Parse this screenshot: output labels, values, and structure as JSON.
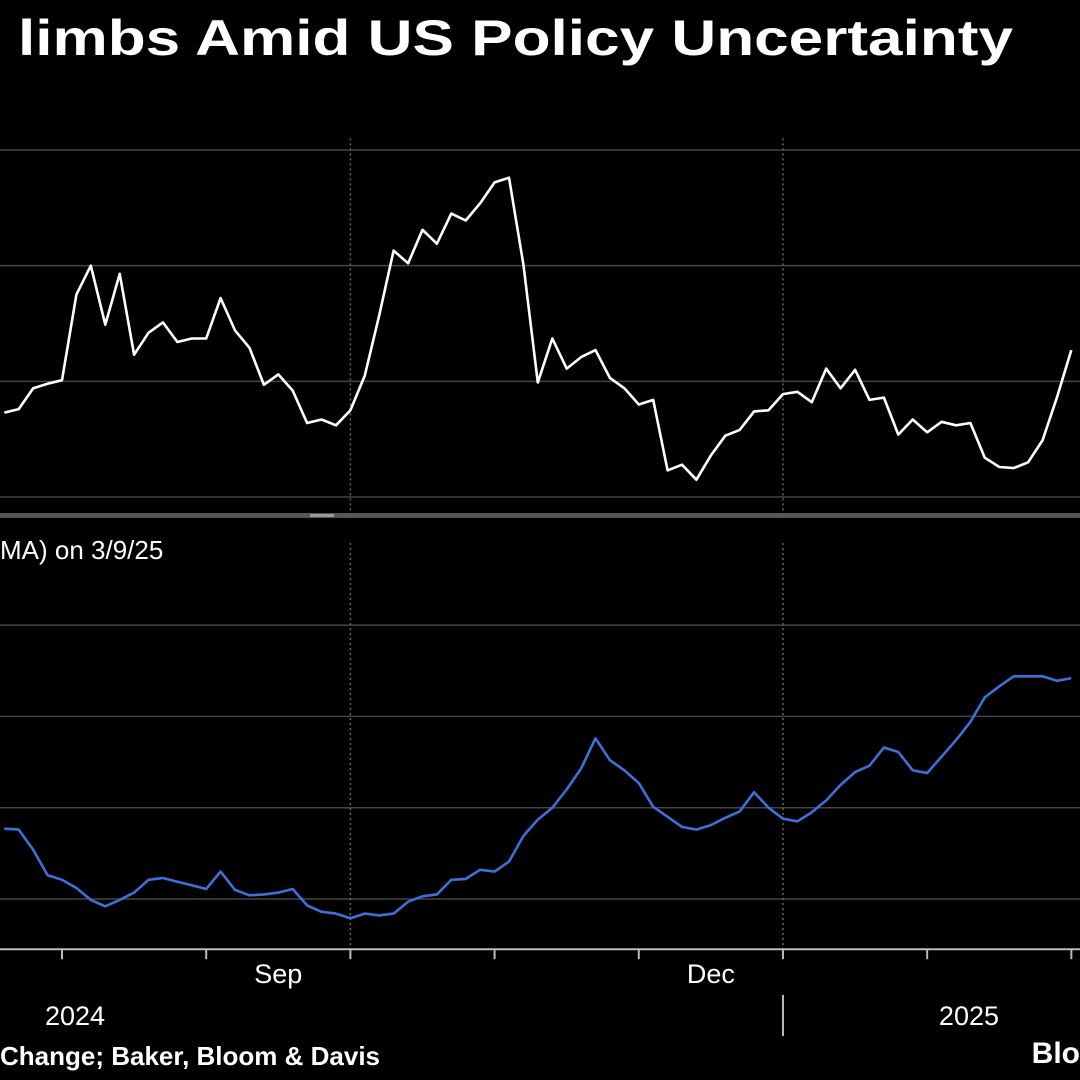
{
  "chart_data": [
    {
      "type": "line",
      "title": "limbs Amid US Policy Uncertainty",
      "x": [
        -0.4,
        -0.3,
        -0.2,
        -0.1,
        0,
        0.1,
        0.2,
        0.3,
        0.4,
        0.5,
        0.6,
        0.7,
        0.8,
        0.9,
        1,
        1.1,
        1.2,
        1.3,
        1.4,
        1.5,
        1.6,
        1.7,
        1.8,
        1.9,
        2,
        2.1,
        2.2,
        2.3,
        2.4,
        2.5,
        2.6,
        2.7,
        2.8,
        2.9,
        3,
        3.1,
        3.2,
        3.3,
        3.4,
        3.5,
        3.6,
        3.7,
        3.8,
        3.9,
        4,
        4.1,
        4.2,
        4.3,
        4.4,
        4.5,
        4.6,
        4.7,
        4.8,
        4.9,
        5,
        5.1,
        5.2,
        5.3,
        5.4,
        5.5,
        5.6,
        5.7,
        5.8,
        5.9,
        6,
        6.1,
        6.2,
        6.3,
        6.4,
        6.5,
        6.6,
        6.7,
        6.8,
        6.9,
        7
      ],
      "series": [
        {
          "color": "#ffffff",
          "values": [
            0.73,
            0.76,
            0.94,
            0.98,
            1.01,
            1.75,
            2.0,
            1.49,
            1.93,
            1.23,
            1.42,
            1.51,
            1.34,
            1.37,
            1.37,
            1.72,
            1.44,
            1.29,
            0.97,
            1.06,
            0.92,
            0.64,
            0.67,
            0.62,
            0.75,
            1.05,
            1.57,
            2.13,
            2.02,
            2.31,
            2.19,
            2.45,
            2.39,
            2.54,
            2.72,
            2.76,
            2.01,
            0.99,
            1.37,
            1.11,
            1.21,
            1.27,
            1.03,
            0.94,
            0.8,
            0.84,
            0.23,
            0.28,
            0.15,
            0.36,
            0.53,
            0.58,
            0.74,
            0.75,
            0.89,
            0.91,
            0.82,
            1.11,
            0.94,
            1.1,
            0.84,
            0.86,
            0.54,
            0.67,
            0.56,
            0.65,
            0.62,
            0.64,
            0.34,
            0.26,
            0.25,
            0.3,
            0.49,
            0.86,
            1.27
          ]
        }
      ],
      "xlim": [
        -0.43,
        7.06
      ],
      "ylim": [
        -0.15,
        3.1
      ],
      "yticks": [
        0,
        1,
        2,
        3
      ],
      "xgrid": [
        2,
        5
      ],
      "grid": true
    },
    {
      "type": "line",
      "subtitle": "MA) on 3/9/25",
      "x": [
        -0.4,
        -0.3,
        -0.2,
        -0.1,
        0,
        0.1,
        0.2,
        0.3,
        0.4,
        0.5,
        0.6,
        0.7,
        0.8,
        0.9,
        1,
        1.1,
        1.2,
        1.3,
        1.4,
        1.5,
        1.6,
        1.7,
        1.8,
        1.9,
        2,
        2.1,
        2.2,
        2.3,
        2.4,
        2.5,
        2.6,
        2.7,
        2.8,
        2.9,
        3,
        3.1,
        3.2,
        3.3,
        3.4,
        3.5,
        3.6,
        3.7,
        3.8,
        3.9,
        4,
        4.1,
        4.2,
        4.3,
        4.4,
        4.5,
        4.6,
        4.7,
        4.8,
        4.9,
        5,
        5.1,
        5.2,
        5.3,
        5.4,
        5.5,
        5.6,
        5.7,
        5.8,
        5.9,
        6,
        6.1,
        6.2,
        6.3,
        6.4,
        6.5,
        6.6,
        6.7,
        6.8,
        6.9,
        7
      ],
      "series": [
        {
          "color": "#3f6fd8",
          "values": [
            0.77,
            0.76,
            0.54,
            0.26,
            0.21,
            0.12,
            -0.01,
            -0.08,
            -0.01,
            0.07,
            0.21,
            0.23,
            0.19,
            0.15,
            0.11,
            0.3,
            0.1,
            0.04,
            0.05,
            0.07,
            0.11,
            -0.07,
            -0.14,
            -0.16,
            -0.21,
            -0.16,
            -0.18,
            -0.16,
            -0.03,
            0.03,
            0.05,
            0.21,
            0.22,
            0.32,
            0.3,
            0.41,
            0.69,
            0.87,
            1.0,
            1.2,
            1.43,
            1.76,
            1.52,
            1.41,
            1.27,
            1.01,
            0.9,
            0.79,
            0.76,
            0.81,
            0.89,
            0.96,
            1.17,
            1.0,
            0.88,
            0.85,
            0.95,
            1.08,
            1.25,
            1.39,
            1.46,
            1.66,
            1.61,
            1.41,
            1.38,
            1.56,
            1.74,
            1.94,
            2.21,
            2.33,
            2.44,
            2.44,
            2.44,
            2.39,
            2.42
          ]
        }
      ],
      "xlim": [
        -0.43,
        7.06
      ],
      "ylim": [
        -0.55,
        3.9
      ],
      "yticks": [
        0,
        1,
        2,
        3
      ],
      "xgrid": [
        2,
        5
      ],
      "grid": true,
      "xticks": [
        0,
        1,
        2,
        3,
        4,
        5,
        6,
        7
      ],
      "xlabels": [
        {
          "value": 1.5,
          "label": "Sep"
        },
        {
          "value": 4.5,
          "label": "Dec"
        }
      ],
      "yearlabels": [
        {
          "value": 0.09,
          "label": "2024"
        },
        {
          "value": 6.29,
          "label": "2025"
        }
      ],
      "year_break": 5,
      "source": "Change; Baker, Bloom & Davis",
      "brand": "Blo"
    }
  ]
}
